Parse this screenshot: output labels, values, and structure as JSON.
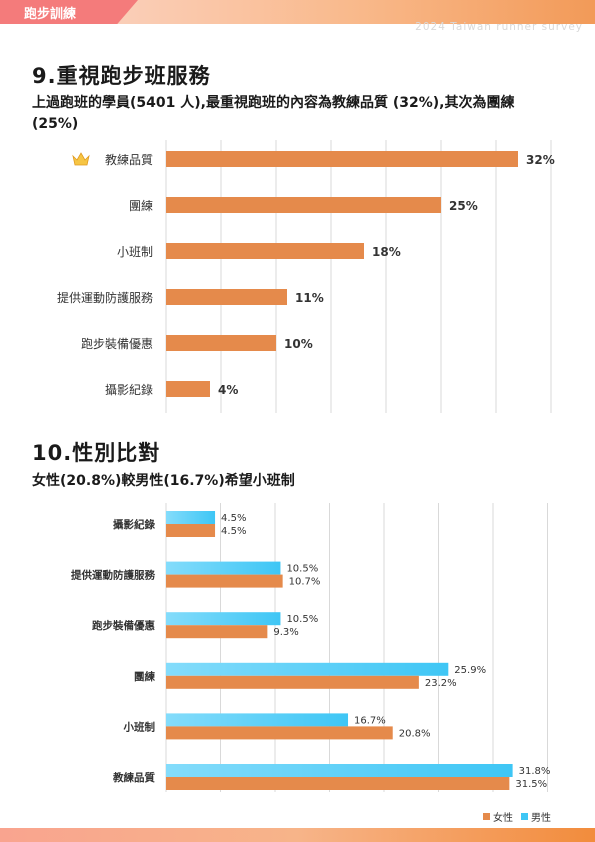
{
  "header": {
    "tab_label": "跑步訓練",
    "survey_tag": "2024 Taiwan runner survey"
  },
  "section1": {
    "title": "9.重視跑步班服務",
    "subtitle": "上過跑班的學員(5401 人),最重視跑班的內容為教練品質 (32%),其次為團練(25%)"
  },
  "section2": {
    "title": "10.性別比對",
    "subtitle": "女性(20.8%)較男性(16.7%)希望小班制"
  },
  "legend": {
    "female": "女性",
    "male": "男性"
  },
  "colors": {
    "orange": "#e58a4b",
    "blue": "#3ec6f5",
    "blue_light": "#84dcfb",
    "grid": "#d9d9d9"
  },
  "chart_data": [
    {
      "type": "bar",
      "orientation": "horizontal",
      "categories": [
        "教練品質",
        "團練",
        "小班制",
        "提供運動防護服務",
        "跑步裝備優惠",
        "攝影紀錄"
      ],
      "values": [
        32,
        25,
        18,
        11,
        10,
        4
      ],
      "value_labels": [
        "32%",
        "25%",
        "18%",
        "11%",
        "10%",
        "4%"
      ],
      "highlight_icon": "crown-icon",
      "xlim": [
        0,
        40
      ],
      "grid": true
    },
    {
      "type": "bar",
      "orientation": "horizontal",
      "categories": [
        "攝影紀錄",
        "提供運動防護服務",
        "跑步裝備優惠",
        "團練",
        "小班制",
        "教練品質"
      ],
      "series": [
        {
          "name": "男性",
          "values": [
            4.5,
            10.5,
            10.5,
            25.9,
            16.7,
            31.8
          ],
          "labels": [
            "4.5%",
            "10.5%",
            "10.5%",
            "25.9%",
            "16.7%",
            "31.8%"
          ]
        },
        {
          "name": "女性",
          "values": [
            4.5,
            10.7,
            9.3,
            23.2,
            20.8,
            31.5
          ],
          "labels": [
            "4.5%",
            "10.7%",
            "9.3%",
            "23.2%",
            "20.8%",
            "31.5%"
          ]
        }
      ],
      "xlim": [
        0,
        35
      ],
      "grid": true,
      "legend_position": "bottom-right"
    }
  ]
}
